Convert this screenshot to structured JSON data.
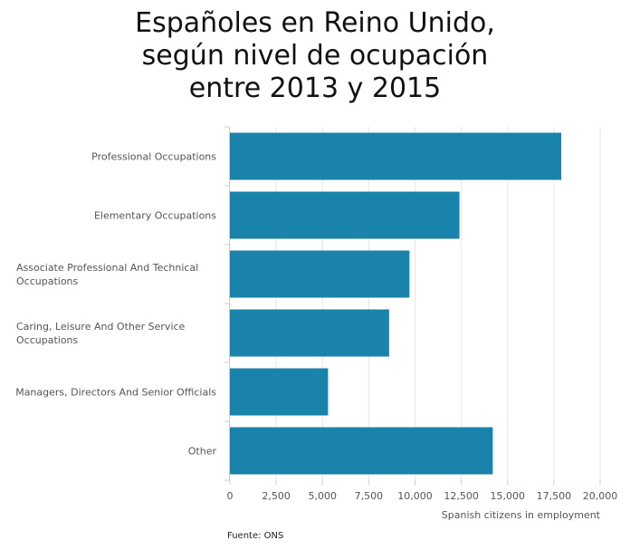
{
  "chart_data": {
    "type": "bar",
    "orientation": "horizontal",
    "title": "Españoles en Reino Unido,\nsegún nivel de ocupación\nentre 2013 y 2015",
    "categories": [
      [
        "Professional Occupations"
      ],
      [
        "Elementary Occupations"
      ],
      [
        "Associate Professional And Technical",
        "Occupations"
      ],
      [
        "Caring, Leisure And Other Service",
        "Occupations"
      ],
      [
        "Managers, Directors And Senior Officials"
      ],
      [
        "Other"
      ]
    ],
    "values": [
      17900,
      12400,
      9700,
      8600,
      5300,
      14200
    ],
    "xlabel": "Spanish citizens in employment",
    "ylabel": "",
    "xlim": [
      0,
      20000
    ],
    "xticks": [
      0,
      2500,
      5000,
      7500,
      10000,
      12500,
      15000,
      17500,
      20000
    ],
    "xtick_labels": [
      "0",
      "2,500",
      "5,000",
      "7,500",
      "10,000",
      "12,500",
      "15,000",
      "17,500",
      "20,000"
    ],
    "grid": true,
    "legend": "none",
    "bar_color": "#1a83ab"
  },
  "source": "Fuente: ONS"
}
